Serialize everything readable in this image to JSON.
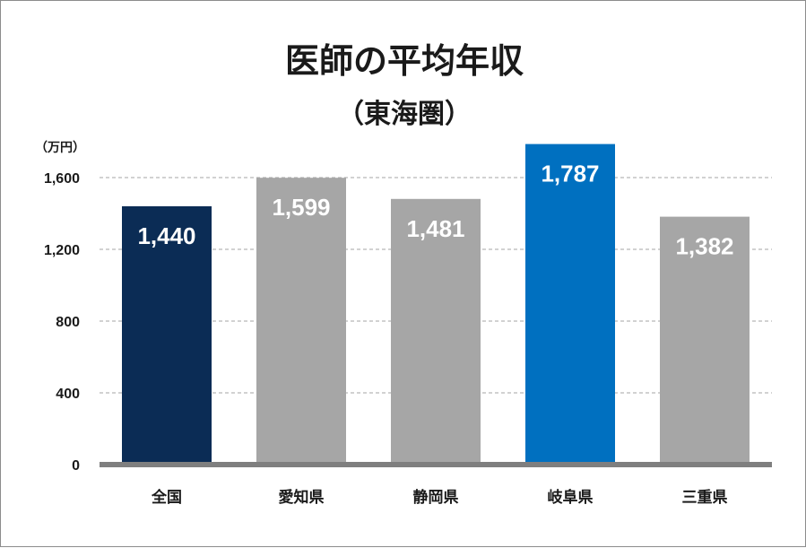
{
  "chart_data": {
    "type": "bar",
    "title": "医師の平均年収",
    "subtitle": "（東海圏）",
    "unit_label": "（万円）",
    "categories": [
      "全国",
      "愛知県",
      "静岡県",
      "岐阜県",
      "三重県"
    ],
    "values": [
      1440,
      1599,
      1481,
      1787,
      1382
    ],
    "value_labels": [
      "1,440",
      "1,599",
      "1,481",
      "1,787",
      "1,382"
    ],
    "bar_colors": [
      "#0b2c55",
      "#a6a6a6",
      "#a6a6a6",
      "#0070c0",
      "#a6a6a6"
    ],
    "ylim": [
      0,
      1800
    ],
    "yticks": [
      0,
      400,
      800,
      1200,
      1600
    ],
    "ytick_labels": [
      "0",
      "400",
      "800",
      "1,200",
      "1,600"
    ],
    "grid": true,
    "legend": "none"
  }
}
